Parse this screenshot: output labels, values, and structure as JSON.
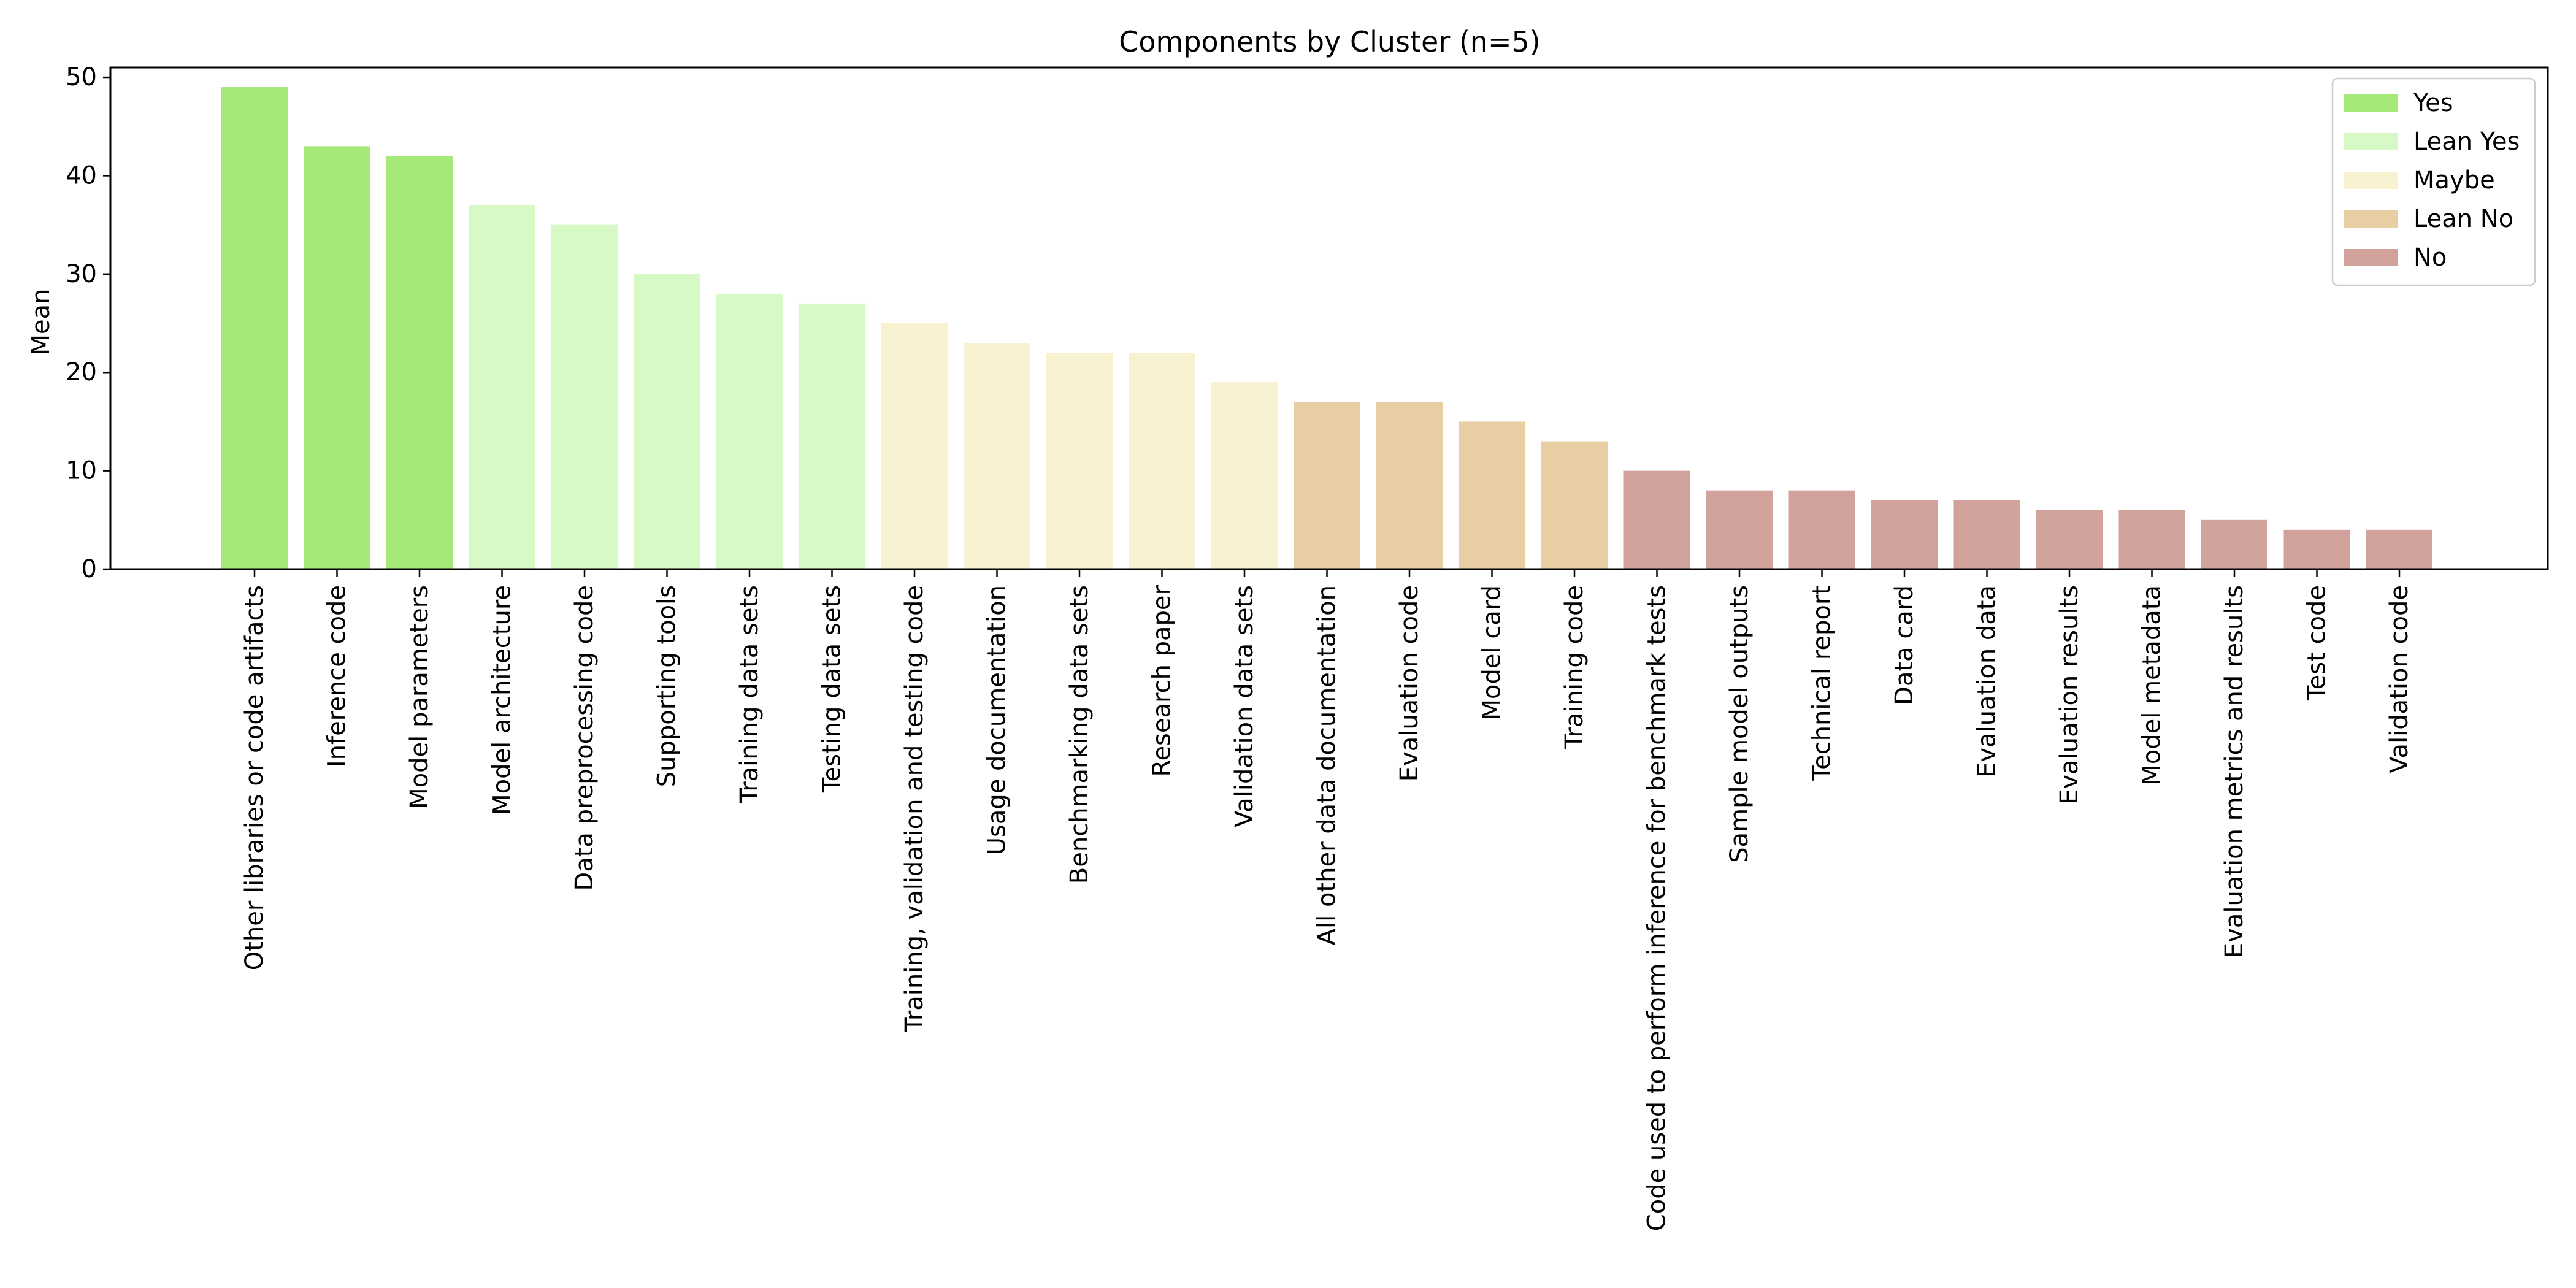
{
  "chart_data": {
    "type": "bar",
    "title": "Components by Cluster (n=5)",
    "xlabel": "",
    "ylabel": "Mean",
    "ylim": [
      0,
      51
    ],
    "yticks": [
      0,
      10,
      20,
      30,
      40,
      50
    ],
    "grid": false,
    "legend_position": "top-right",
    "legend": [
      {
        "label": "Yes",
        "color": "#a5ea78"
      },
      {
        "label": "Lean Yes",
        "color": "#d6f9c5"
      },
      {
        "label": "Maybe",
        "color": "#f8f1cf"
      },
      {
        "label": "Lean No",
        "color": "#e8cfa3"
      },
      {
        "label": "No",
        "color": "#d1a19b"
      }
    ],
    "categories": [
      "Other libraries or code artifacts",
      "Inference code",
      "Model parameters",
      "Model architecture",
      "Data preprocessing code",
      "Supporting tools",
      "Training data sets",
      "Testing data sets",
      "Training, validation and testing code",
      "Usage documentation",
      "Benchmarking data sets",
      "Research paper",
      "Validation data sets",
      "All other data documentation",
      "Evaluation code",
      "Model card",
      "Training code",
      "Code used to perform inference for benchmark tests",
      "Sample model outputs",
      "Technical report",
      "Data card",
      "Evaluation data",
      "Evaluation results",
      "Model metadata",
      "Evaluation metrics and results",
      "Test code",
      "Validation code"
    ],
    "values": [
      49,
      43,
      42,
      37,
      35,
      30,
      28,
      27,
      25,
      23,
      22,
      22,
      19,
      17,
      17,
      15,
      13,
      10,
      8,
      8,
      7,
      7,
      6,
      6,
      5,
      4,
      4
    ],
    "bar_groups": [
      0,
      0,
      0,
      1,
      1,
      1,
      1,
      1,
      2,
      2,
      2,
      2,
      2,
      3,
      3,
      3,
      3,
      4,
      4,
      4,
      4,
      4,
      4,
      4,
      4,
      4,
      4
    ]
  }
}
